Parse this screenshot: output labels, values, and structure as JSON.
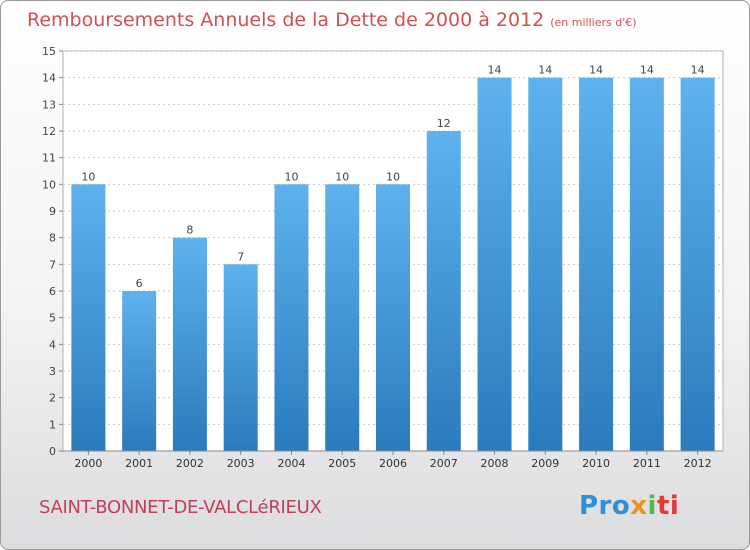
{
  "header": {
    "title": "Remboursements Annuels de la Dette de 2000 à 2012",
    "subtitle": "(en milliers d'€)"
  },
  "footer": {
    "commune": "SAINT-BONNET-DE-VALCLéRIEUX",
    "logo": {
      "p1": "Pro",
      "p2": "x",
      "p3": "i",
      "p4": "ti"
    }
  },
  "colors": {
    "bar_light": "#5eb2ee",
    "bar_dark": "#2a7bbd",
    "title": "#d05050",
    "grid": "#c8c8c8"
  },
  "chart_data": {
    "type": "bar",
    "title": "Remboursements Annuels de la Dette de 2000 à 2012",
    "subtitle": "(en milliers d'€)",
    "categories": [
      "2000",
      "2001",
      "2002",
      "2003",
      "2004",
      "2005",
      "2006",
      "2007",
      "2008",
      "2009",
      "2010",
      "2011",
      "2012"
    ],
    "values": [
      10,
      6,
      8,
      7,
      10,
      10,
      10,
      12,
      14,
      14,
      14,
      14,
      14
    ],
    "data_labels": [
      "10",
      "6",
      "8",
      "7",
      "10",
      "10",
      "10",
      "12",
      "14",
      "14",
      "14",
      "14",
      "14"
    ],
    "yticks": [
      "0",
      "1",
      "2",
      "3",
      "4",
      "5",
      "6",
      "7",
      "8",
      "9",
      "10",
      "11",
      "12",
      "13",
      "14",
      "15"
    ],
    "ylim": [
      0,
      15
    ],
    "xlabel": "",
    "ylabel": "",
    "grid": true
  }
}
